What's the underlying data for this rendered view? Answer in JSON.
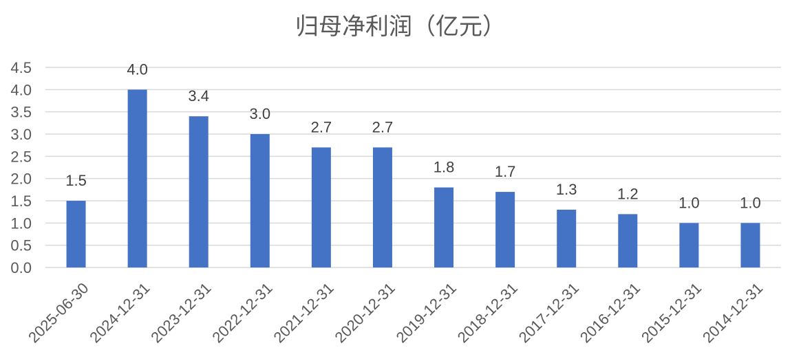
{
  "chart_data": {
    "type": "bar",
    "title": "归母净利润（亿元）",
    "categories": [
      "2025-06-30",
      "2024-12-31",
      "2023-12-31",
      "2022-12-31",
      "2021-12-31",
      "2020-12-31",
      "2019-12-31",
      "2018-12-31",
      "2017-12-31",
      "2016-12-31",
      "2015-12-31",
      "2014-12-31"
    ],
    "values": [
      1.5,
      4.0,
      3.4,
      3.0,
      2.7,
      2.7,
      1.8,
      1.7,
      1.3,
      1.2,
      1.0,
      1.0
    ],
    "data_labels": [
      "1.5",
      "4.0",
      "3.4",
      "3.0",
      "2.7",
      "2.7",
      "1.8",
      "1.7",
      "1.3",
      "1.2",
      "1.0",
      "1.0"
    ],
    "yticks": [
      "0.0",
      "0.5",
      "1.0",
      "1.5",
      "2.0",
      "2.5",
      "3.0",
      "3.5",
      "4.0",
      "4.5"
    ],
    "ylim": [
      0,
      4.5
    ],
    "xlabel": "",
    "ylabel": "",
    "grid": true,
    "bar_color": "#4472c4"
  }
}
